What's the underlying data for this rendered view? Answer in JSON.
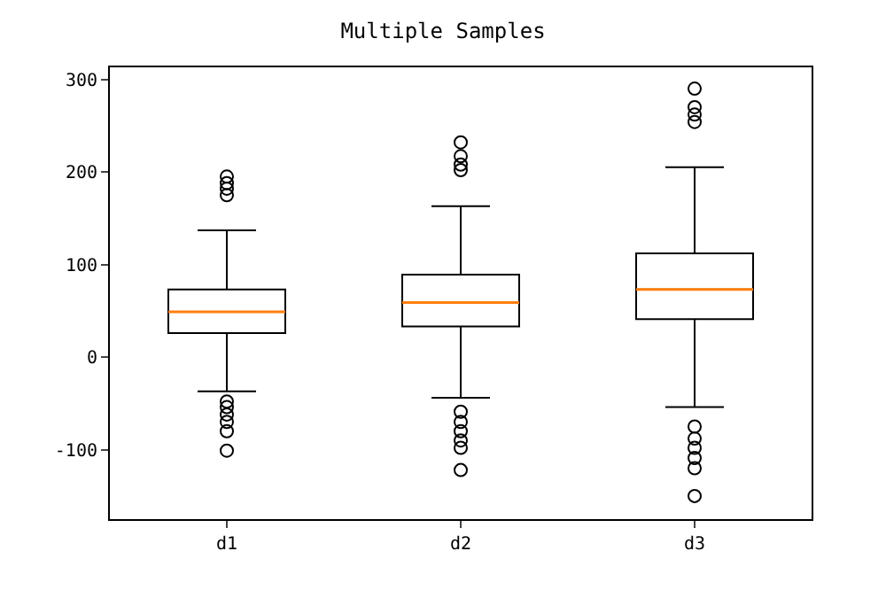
{
  "chart_data": {
    "type": "box",
    "title": "Multiple Samples",
    "categories": [
      "d1",
      "d2",
      "d3"
    ],
    "boxes": [
      {
        "low": -37,
        "q1": 26,
        "median": 49,
        "q3": 73,
        "high": 137,
        "outliers": [
          195,
          188,
          182,
          175,
          -48,
          -54,
          -62,
          -70,
          -80,
          -101
        ]
      },
      {
        "low": -44,
        "q1": 33,
        "median": 59,
        "q3": 89,
        "high": 163,
        "outliers": [
          232,
          217,
          208,
          202,
          -59,
          -70,
          -80,
          -90,
          -98,
          -122
        ]
      },
      {
        "low": -54,
        "q1": 41,
        "median": 73,
        "q3": 112,
        "high": 205,
        "outliers": [
          290,
          270,
          262,
          254,
          -75,
          -88,
          -98,
          -109,
          -120,
          -150
        ]
      }
    ],
    "ylim": [
      -175,
      313
    ],
    "yticks": [
      -100,
      0,
      100,
      200,
      300
    ]
  }
}
